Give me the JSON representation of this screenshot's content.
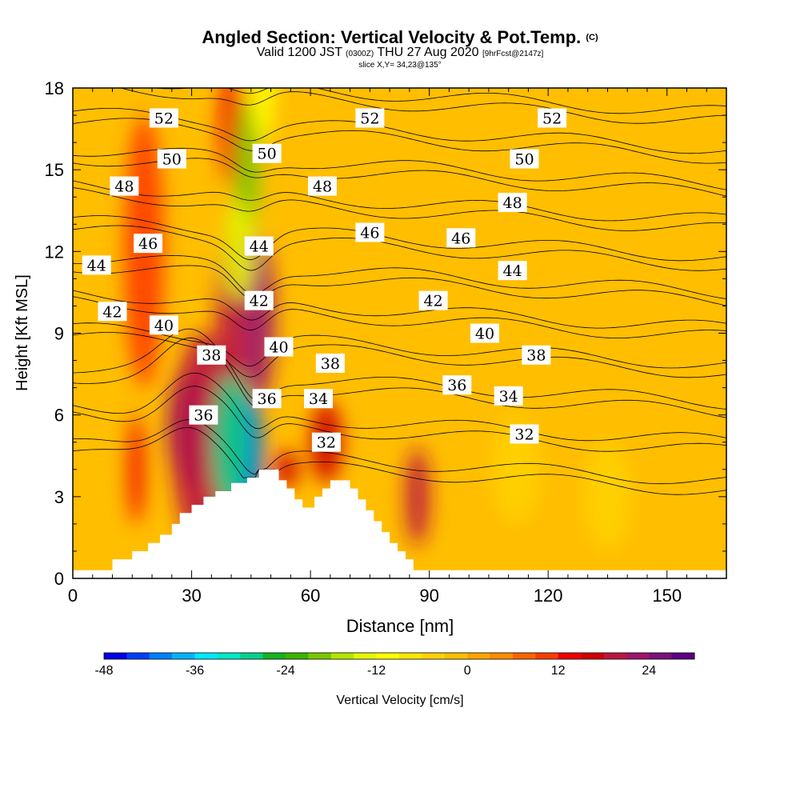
{
  "title": {
    "main": "Angled Section: Vertical Velocity & Pot.Temp.",
    "main_suffix": "(C)",
    "valid_prefix": "Valid 1200 JST",
    "valid_zulu": "(0300Z)",
    "valid_date": "THU 27 Aug 2020",
    "forecast": "[9hrFcst@2147z]",
    "slice": "slice X,Y= 34,23@135°"
  },
  "chart_data": {
    "type": "heatmap",
    "xlabel": "Distance [nm]",
    "ylabel": "Height [Kft MSL]",
    "xlim": [
      0,
      165
    ],
    "ylim": [
      0,
      18
    ],
    "x_ticks": [
      0,
      30,
      60,
      90,
      120,
      150
    ],
    "y_ticks": [
      0,
      3,
      6,
      9,
      12,
      15,
      18
    ],
    "colorbar": {
      "label": "Vertical Velocity [cm/s]",
      "range": [
        -48,
        30
      ],
      "step": 3,
      "tick_labels": [
        -48,
        -36,
        -24,
        -12,
        0,
        12,
        24
      ],
      "colors": [
        "#0000e6",
        "#0040ff",
        "#0080ff",
        "#00b4ff",
        "#00e6ff",
        "#00e6c8",
        "#00d28c",
        "#14b41e",
        "#3cb400",
        "#78c800",
        "#b4e600",
        "#e6f500",
        "#ffff00",
        "#ffe600",
        "#ffd200",
        "#ffbe00",
        "#ffa500",
        "#ff8c00",
        "#ff6400",
        "#ff3c00",
        "#f00000",
        "#d20000",
        "#be1441",
        "#a0146e",
        "#781478",
        "#5a0082"
      ]
    },
    "terrain": [
      [
        0,
        0.3
      ],
      [
        10,
        0.3
      ],
      [
        10,
        0.7
      ],
      [
        15,
        0.7
      ],
      [
        15,
        1
      ],
      [
        19,
        1
      ],
      [
        19,
        1.3
      ],
      [
        22,
        1.3
      ],
      [
        22,
        1.6
      ],
      [
        25,
        1.6
      ],
      [
        25,
        2
      ],
      [
        27,
        2
      ],
      [
        27,
        2.4
      ],
      [
        30,
        2.4
      ],
      [
        30,
        2.7
      ],
      [
        33,
        2.7
      ],
      [
        33,
        3
      ],
      [
        36,
        3
      ],
      [
        36,
        3.2
      ],
      [
        40,
        3.2
      ],
      [
        40,
        3.5
      ],
      [
        44,
        3.5
      ],
      [
        44,
        3.7
      ],
      [
        47,
        3.7
      ],
      [
        47,
        4
      ],
      [
        52,
        4
      ],
      [
        52,
        3.6
      ],
      [
        54,
        3.6
      ],
      [
        54,
        3.3
      ],
      [
        56,
        3.3
      ],
      [
        56,
        2.9
      ],
      [
        58,
        2.9
      ],
      [
        58,
        2.6
      ],
      [
        61,
        2.6
      ],
      [
        61,
        3
      ],
      [
        63,
        3
      ],
      [
        63,
        3.3
      ],
      [
        65,
        3.3
      ],
      [
        65,
        3.6
      ],
      [
        70,
        3.6
      ],
      [
        70,
        3.3
      ],
      [
        72,
        3.3
      ],
      [
        72,
        2.9
      ],
      [
        74,
        2.9
      ],
      [
        74,
        2.5
      ],
      [
        76,
        2.5
      ],
      [
        76,
        2.1
      ],
      [
        78,
        2.1
      ],
      [
        78,
        1.7
      ],
      [
        80,
        1.7
      ],
      [
        80,
        1.3
      ],
      [
        82,
        1.3
      ],
      [
        82,
        1
      ],
      [
        84,
        1
      ],
      [
        84,
        0.7
      ],
      [
        86,
        0.7
      ],
      [
        86,
        0.3
      ],
      [
        165,
        0.3
      ]
    ],
    "theta_contours": [
      {
        "value": 32,
        "label_positions": [
          [
            64,
            5
          ],
          [
            114,
            5.3
          ]
        ]
      },
      {
        "value": 34,
        "label_positions": [
          [
            62,
            6.6
          ],
          [
            110,
            6.7
          ]
        ]
      },
      {
        "value": 36,
        "label_positions": [
          [
            33,
            6
          ],
          [
            49,
            6.6
          ],
          [
            97,
            7.1
          ]
        ]
      },
      {
        "value": 38,
        "label_positions": [
          [
            35,
            8.2
          ],
          [
            65,
            7.9
          ],
          [
            117,
            8.2
          ]
        ]
      },
      {
        "value": 40,
        "label_positions": [
          [
            23,
            9.3
          ],
          [
            52,
            8.5
          ],
          [
            104,
            9
          ]
        ]
      },
      {
        "value": 42,
        "label_positions": [
          [
            10,
            9.8
          ],
          [
            47,
            10.2
          ],
          [
            91,
            10.2
          ]
        ]
      },
      {
        "value": 44,
        "label_positions": [
          [
            6,
            11.5
          ],
          [
            47,
            12.2
          ],
          [
            111,
            11.3
          ]
        ]
      },
      {
        "value": 46,
        "label_positions": [
          [
            19,
            12.3
          ],
          [
            75,
            12.7
          ],
          [
            98,
            12.5
          ]
        ]
      },
      {
        "value": 48,
        "label_positions": [
          [
            13,
            14.4
          ],
          [
            63,
            14.4
          ],
          [
            111,
            13.8
          ]
        ]
      },
      {
        "value": 50,
        "label_positions": [
          [
            25,
            15.4
          ],
          [
            49,
            15.6
          ],
          [
            114,
            15.4
          ]
        ]
      },
      {
        "value": 52,
        "label_positions": [
          [
            23,
            16.9
          ],
          [
            75,
            16.9
          ],
          [
            121,
            16.9
          ]
        ]
      }
    ],
    "velocity_features": [
      {
        "x": 29,
        "y": 5.5,
        "value": 30,
        "rx": 5,
        "ry": 2.2
      },
      {
        "x": 33,
        "y": 5,
        "value": 18,
        "rx": 8,
        "ry": 4
      },
      {
        "x": 40,
        "y": 8,
        "value": 18,
        "rx": 4,
        "ry": 5
      },
      {
        "x": 47,
        "y": 9.5,
        "value": 21,
        "rx": 4,
        "ry": 3
      },
      {
        "x": 18,
        "y": 12,
        "value": 9,
        "rx": 5,
        "ry": 5
      },
      {
        "x": 40,
        "y": 16.5,
        "value": 12,
        "rx": 3,
        "ry": 2
      },
      {
        "x": 16,
        "y": 4,
        "value": 12,
        "rx": 2,
        "ry": 2
      },
      {
        "x": 87,
        "y": 3,
        "value": 18,
        "rx": 3,
        "ry": 1.8
      },
      {
        "x": 64,
        "y": 5,
        "value": 15,
        "rx": 4,
        "ry": 1.5
      },
      {
        "x": 54,
        "y": 4,
        "value": 15,
        "rx": 3,
        "ry": 0.7
      },
      {
        "x": 45,
        "y": 4.5,
        "value": -45,
        "rx": 3,
        "ry": 2.2
      },
      {
        "x": 40,
        "y": 5,
        "value": -30,
        "rx": 5,
        "ry": 2.5
      },
      {
        "x": 44,
        "y": 15,
        "value": -21,
        "rx": 3,
        "ry": 2.5
      },
      {
        "x": 42,
        "y": 12,
        "value": -15,
        "rx": 4,
        "ry": 1.8
      },
      {
        "x": 48,
        "y": 18,
        "value": -12,
        "rx": 3,
        "ry": 2
      },
      {
        "x": 135,
        "y": 3,
        "value": -6,
        "rx": 6,
        "ry": 2
      },
      {
        "x": 112,
        "y": 4,
        "value": -6,
        "rx": 6,
        "ry": 2
      }
    ]
  }
}
